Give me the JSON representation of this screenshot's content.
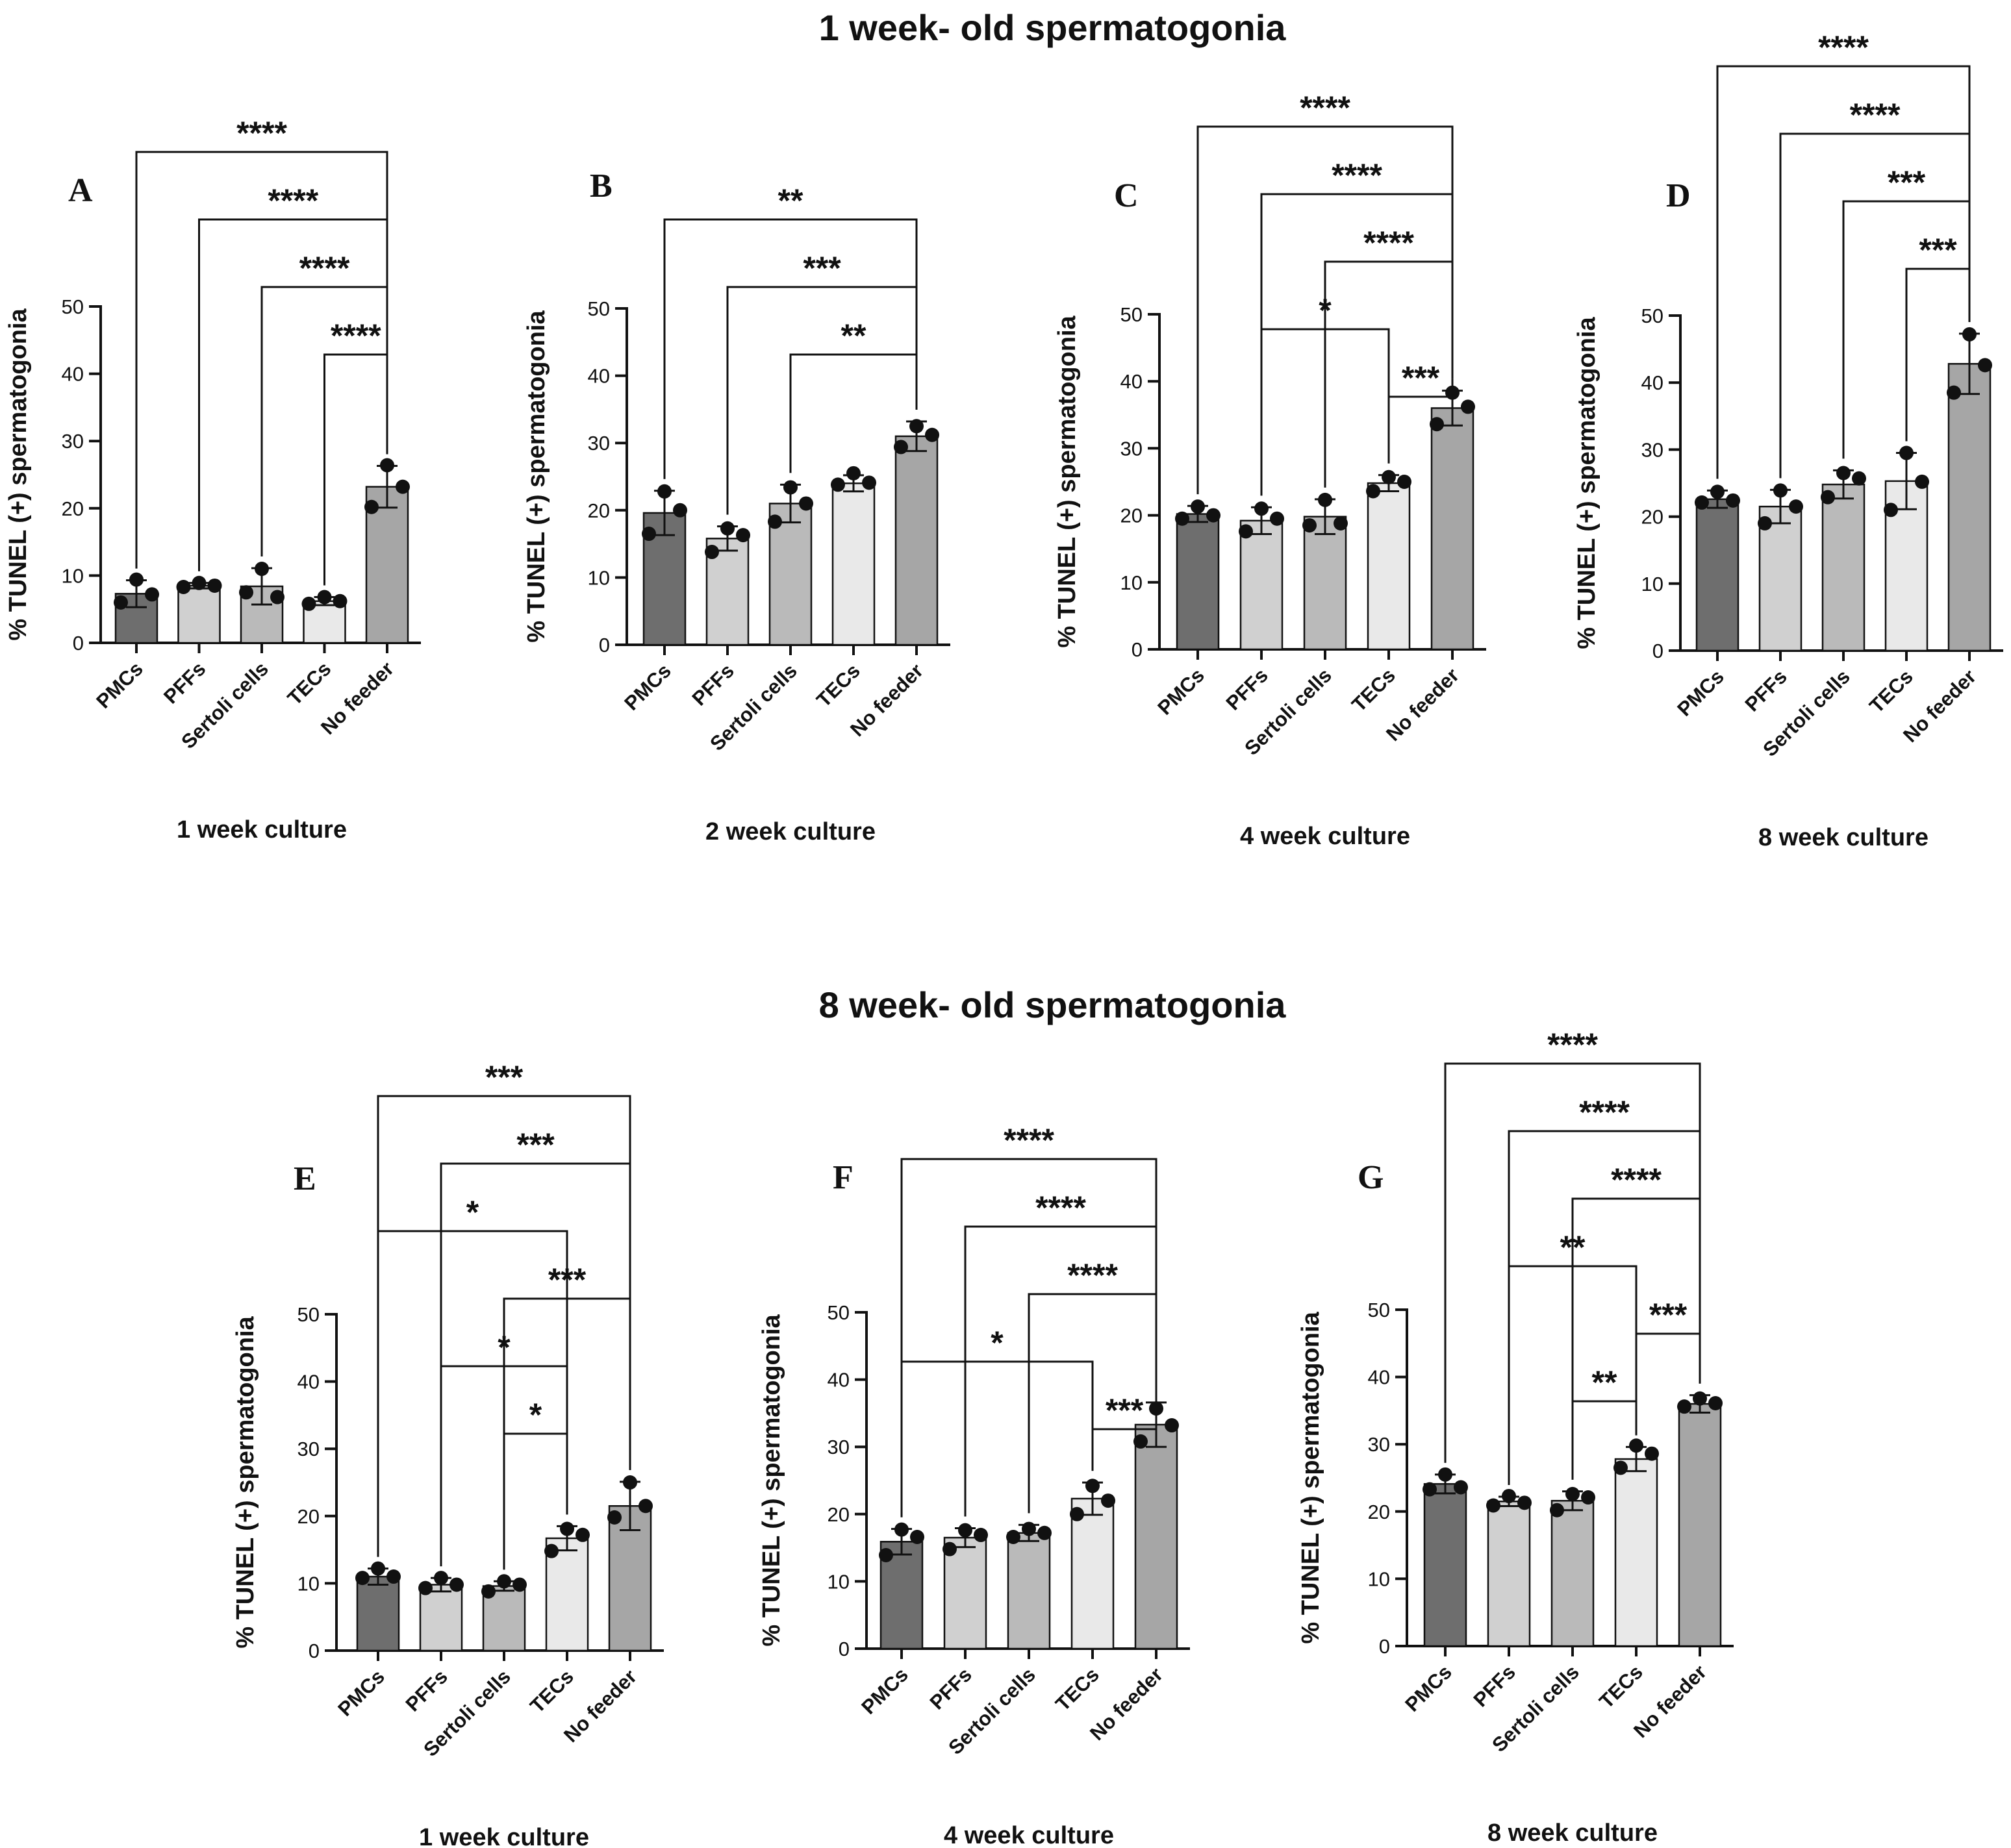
{
  "colors": {
    "PMCs": "#6e6e6e",
    "PFFs": "#d0d0d0",
    "Sertoli cells": "#bababa",
    "TECs": "#e9e9e9",
    "No feeder": "#a6a6a6",
    "ink": "#111111"
  },
  "chart_data": [
    {
      "type": "bar",
      "section": "1 week- old spermatogonia",
      "letter": "A",
      "xlabel": "1 week culture",
      "ylabel": "% TUNEL (+) spermatogonia",
      "ylim": [
        0,
        50
      ],
      "yticks": [
        "0",
        "10",
        "20",
        "30",
        "40",
        "50"
      ],
      "categories": [
        "PMCs",
        "PFFs",
        "Sertoli cells",
        "TECs",
        "No feeder"
      ],
      "values": [
        7.3,
        8.5,
        8.4,
        6.2,
        23.2
      ],
      "errors": [
        2.0,
        0.4,
        2.7,
        0.6,
        3.1
      ],
      "points": [
        [
          9.4,
          7.2,
          6.0
        ],
        [
          8.9,
          8.5,
          8.3
        ],
        [
          11.0,
          6.8,
          7.5
        ],
        [
          6.8,
          6.2,
          5.8
        ],
        [
          26.4,
          23.2,
          20.2
        ]
      ],
      "comparisons": [
        {
          "a": 0,
          "b": 4,
          "label": "****"
        },
        {
          "a": 1,
          "b": 4,
          "label": "****"
        },
        {
          "a": 2,
          "b": 4,
          "label": "****"
        },
        {
          "a": 3,
          "b": 4,
          "label": "****"
        }
      ]
    },
    {
      "type": "bar",
      "section": "1 week- old spermatogonia",
      "letter": "B",
      "xlabel": "2 week culture",
      "ylabel": "% TUNEL (+) spermatogonia",
      "ylim": [
        0,
        50
      ],
      "yticks": [
        "0",
        "10",
        "20",
        "30",
        "40",
        "50"
      ],
      "categories": [
        "PMCs",
        "PFFs",
        "Sertoli cells",
        "TECs",
        "No feeder"
      ],
      "values": [
        19.6,
        15.8,
        21.0,
        24.0,
        31.0
      ],
      "errors": [
        3.3,
        1.8,
        2.8,
        1.2,
        2.2
      ],
      "points": [
        [
          22.8,
          20.0,
          16.5
        ],
        [
          17.3,
          16.3,
          13.8
        ],
        [
          23.4,
          21.0,
          18.3
        ],
        [
          25.5,
          24.1,
          23.8
        ],
        [
          32.5,
          31.2,
          29.4
        ]
      ],
      "comparisons": [
        {
          "a": 0,
          "b": 4,
          "label": "**"
        },
        {
          "a": 1,
          "b": 4,
          "label": "***"
        },
        {
          "a": 2,
          "b": 4,
          "label": "**"
        }
      ]
    },
    {
      "type": "bar",
      "section": "1 week- old spermatogonia",
      "letter": "C",
      "xlabel": "4 week culture",
      "ylabel": "% TUNEL (+) spermatogonia",
      "ylim": [
        0,
        50
      ],
      "yticks": [
        "0",
        "10",
        "20",
        "30",
        "40",
        "50"
      ],
      "categories": [
        "PMCs",
        "PFFs",
        "Sertoli cells",
        "TECs",
        "No feeder"
      ],
      "values": [
        20.2,
        19.2,
        19.8,
        24.8,
        36.0
      ],
      "errors": [
        1.2,
        2.0,
        2.6,
        1.2,
        2.6
      ],
      "points": [
        [
          21.3,
          20.0,
          19.5
        ],
        [
          21.0,
          19.5,
          17.6
        ],
        [
          22.3,
          18.8,
          18.5
        ],
        [
          25.7,
          25.0,
          23.6
        ],
        [
          38.3,
          36.2,
          33.6
        ]
      ],
      "comparisons": [
        {
          "a": 0,
          "b": 4,
          "label": "****"
        },
        {
          "a": 1,
          "b": 4,
          "label": "****"
        },
        {
          "a": 2,
          "b": 4,
          "label": "****"
        },
        {
          "a": 1,
          "b": 3,
          "label": "*"
        },
        {
          "a": 3,
          "b": 4,
          "label": "***"
        }
      ]
    },
    {
      "type": "bar",
      "section": "1 week- old spermatogonia",
      "letter": "D",
      "xlabel": "8 week culture",
      "ylabel": "% TUNEL (+) spermatogonia",
      "ylim": [
        0,
        50
      ],
      "yticks": [
        "0",
        "10",
        "20",
        "30",
        "40",
        "50"
      ],
      "categories": [
        "PMCs",
        "PFFs",
        "Sertoli cells",
        "TECs",
        "No feeder"
      ],
      "values": [
        22.6,
        21.5,
        24.8,
        25.3,
        42.8
      ],
      "errors": [
        1.3,
        2.5,
        2.1,
        4.2,
        4.5
      ],
      "points": [
        [
          23.7,
          22.4,
          22.1
        ],
        [
          23.9,
          21.5,
          19.0
        ],
        [
          26.5,
          25.7,
          22.9
        ],
        [
          29.5,
          25.2,
          21.0
        ],
        [
          47.2,
          42.6,
          38.5
        ]
      ],
      "comparisons": [
        {
          "a": 0,
          "b": 4,
          "label": "****"
        },
        {
          "a": 1,
          "b": 4,
          "label": "****"
        },
        {
          "a": 2,
          "b": 4,
          "label": "***"
        },
        {
          "a": 3,
          "b": 4,
          "label": "***"
        }
      ]
    },
    {
      "type": "bar",
      "section": "8 week- old spermatogonia",
      "letter": "E",
      "xlabel": "1 week culture",
      "ylabel": "% TUNEL (+) spermatogonia",
      "ylim": [
        0,
        50
      ],
      "yticks": [
        "0",
        "10",
        "20",
        "30",
        "40",
        "50"
      ],
      "categories": [
        "PMCs",
        "PFFs",
        "Sertoli cells",
        "TECs",
        "No feeder"
      ],
      "values": [
        11.0,
        9.8,
        9.6,
        16.7,
        21.5
      ],
      "errors": [
        1.2,
        1.0,
        0.7,
        1.8,
        3.6
      ],
      "points": [
        [
          12.2,
          11.0,
          10.8
        ],
        [
          10.8,
          9.8,
          9.3
        ],
        [
          10.3,
          9.8,
          8.8
        ],
        [
          18.1,
          17.2,
          14.8
        ],
        [
          25.0,
          21.5,
          19.8
        ]
      ],
      "comparisons": [
        {
          "a": 0,
          "b": 4,
          "label": "***"
        },
        {
          "a": 1,
          "b": 4,
          "label": "***"
        },
        {
          "a": 0,
          "b": 3,
          "label": "*"
        },
        {
          "a": 2,
          "b": 4,
          "label": "***"
        },
        {
          "a": 1,
          "b": 3,
          "label": "*"
        },
        {
          "a": 2,
          "b": 3,
          "label": "*"
        }
      ]
    },
    {
      "type": "bar",
      "section": "8 week- old spermatogonia",
      "letter": "F",
      "xlabel": "4 week culture",
      "ylabel": "% TUNEL (+) spermatogonia",
      "ylim": [
        0,
        50
      ],
      "yticks": [
        "0",
        "10",
        "20",
        "30",
        "40",
        "50"
      ],
      "categories": [
        "PMCs",
        "PFFs",
        "Sertoli cells",
        "TECs",
        "No feeder"
      ],
      "values": [
        15.9,
        16.5,
        17.2,
        22.3,
        33.3
      ],
      "errors": [
        1.9,
        1.4,
        1.2,
        2.4,
        3.3
      ],
      "points": [
        [
          17.7,
          16.6,
          13.9
        ],
        [
          17.6,
          16.9,
          14.8
        ],
        [
          17.8,
          17.2,
          16.6
        ],
        [
          24.2,
          22.0,
          20.0
        ],
        [
          35.7,
          33.2,
          30.8
        ]
      ],
      "comparisons": [
        {
          "a": 0,
          "b": 4,
          "label": "****"
        },
        {
          "a": 1,
          "b": 4,
          "label": "****"
        },
        {
          "a": 2,
          "b": 4,
          "label": "****"
        },
        {
          "a": 0,
          "b": 3,
          "label": "*"
        },
        {
          "a": 3,
          "b": 4,
          "label": "***"
        }
      ]
    },
    {
      "type": "bar",
      "section": "8 week- old spermatogonia",
      "letter": "G",
      "xlabel": "8 week culture",
      "ylabel": "% TUNEL (+) spermatogonia",
      "ylim": [
        0,
        50
      ],
      "yticks": [
        "0",
        "10",
        "20",
        "30",
        "40",
        "50"
      ],
      "categories": [
        "PMCs",
        "PFFs",
        "Sertoli cells",
        "TECs",
        "No feeder"
      ],
      "values": [
        24.1,
        21.5,
        21.6,
        27.8,
        36.0
      ],
      "errors": [
        1.4,
        0.7,
        1.4,
        1.8,
        1.3
      ],
      "points": [
        [
          25.5,
          23.6,
          23.3
        ],
        [
          22.3,
          21.3,
          20.9
        ],
        [
          22.6,
          22.1,
          20.2
        ],
        [
          29.8,
          28.6,
          26.5
        ],
        [
          36.8,
          36.1,
          35.6
        ]
      ],
      "comparisons": [
        {
          "a": 0,
          "b": 4,
          "label": "****"
        },
        {
          "a": 1,
          "b": 4,
          "label": "****"
        },
        {
          "a": 2,
          "b": 4,
          "label": "****"
        },
        {
          "a": 1,
          "b": 3,
          "label": "**"
        },
        {
          "a": 3,
          "b": 4,
          "label": "***"
        },
        {
          "a": 2,
          "b": 3,
          "label": "**"
        }
      ]
    }
  ]
}
